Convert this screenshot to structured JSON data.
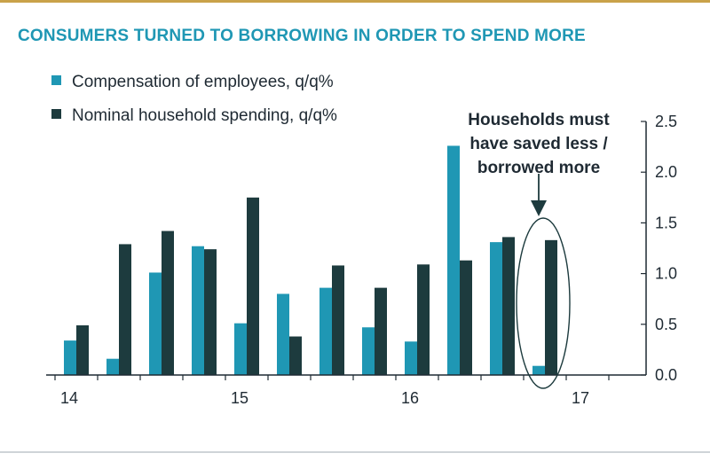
{
  "colors": {
    "title": "#1f97b4",
    "compensation": "#1f97b4",
    "spending": "#1d3b3e",
    "accent_rule": "#c9a24a"
  },
  "title": "CONSUMERS TURNED TO BORROWING IN ORDER TO SPEND MORE",
  "annotation": "Households must have saved less / borrowed more",
  "chart_data": {
    "type": "bar",
    "title": "CONSUMERS TURNED TO BORROWING IN ORDER TO SPEND MORE",
    "xlabel": "",
    "ylabel": "",
    "ylim": [
      0,
      2.5
    ],
    "y_ticks": [
      "0.0",
      "0.5",
      "1.0",
      "1.5",
      "2.0",
      "2.5"
    ],
    "y_axis_side": "right",
    "x_tick_labels": [
      "14",
      "15",
      "16",
      "17"
    ],
    "categories": [
      "14Q1",
      "14Q2",
      "14Q3",
      "14Q4",
      "15Q1",
      "15Q2",
      "15Q3",
      "15Q4",
      "16Q1",
      "16Q2",
      "16Q3",
      "16Q4"
    ],
    "legend_placement": "top-left",
    "grid": false,
    "series": [
      {
        "name": "Compensation of employees, q/q%",
        "color": "#1f97b4",
        "values": [
          0.34,
          0.16,
          1.01,
          1.27,
          0.51,
          0.8,
          0.86,
          0.47,
          0.33,
          2.26,
          1.31,
          0.09
        ]
      },
      {
        "name": "Nominal household spending, q/q%",
        "color": "#1d3b3e",
        "values": [
          0.49,
          1.29,
          1.42,
          1.24,
          1.75,
          0.38,
          1.08,
          0.86,
          1.09,
          1.13,
          1.36,
          1.33
        ]
      }
    ],
    "annotation": "Households must have saved less / borrowed more",
    "highlight_category": "16Q4"
  }
}
